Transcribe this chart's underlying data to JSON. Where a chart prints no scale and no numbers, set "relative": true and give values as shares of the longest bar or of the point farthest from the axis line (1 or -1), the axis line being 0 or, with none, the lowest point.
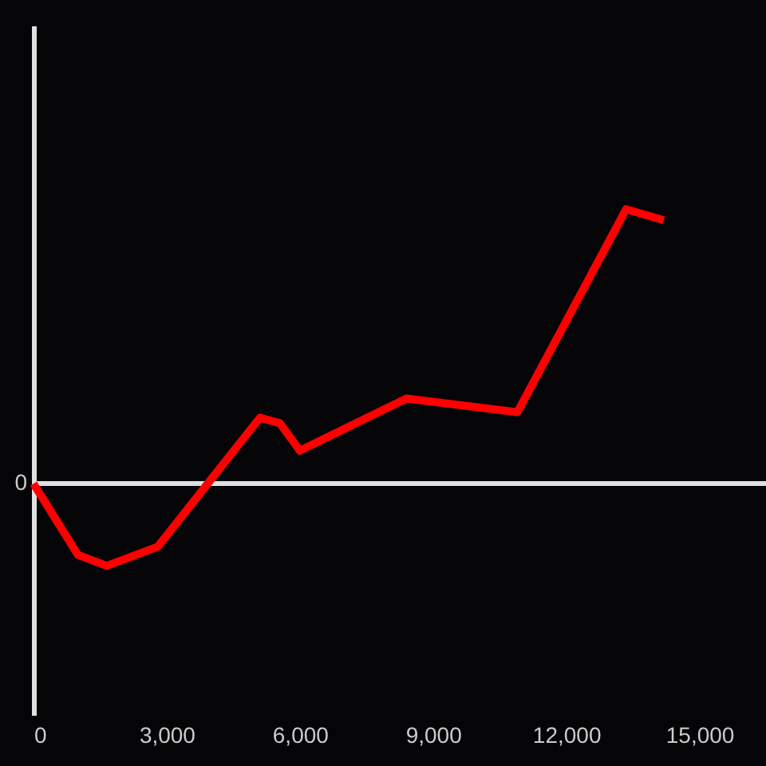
{
  "chart_data": {
    "type": "line",
    "relative": true,
    "x": [
      0,
      1000,
      1650,
      2800,
      5100,
      5550,
      6000,
      8400,
      10900,
      13350,
      14200
    ],
    "series": [
      {
        "color": "#ff0000",
        "values": [
          0,
          -0.26,
          -0.3,
          -0.23,
          0.24,
          0.22,
          0.12,
          0.31,
          0.26,
          1,
          0.96
        ]
      }
    ],
    "xlim": [
      0,
      16500
    ],
    "xticks": [
      0,
      {
        "value": 3000,
        "label": "3,000"
      },
      {
        "value": 6000,
        "label": "6,000"
      },
      {
        "value": 9000,
        "label": "9,000"
      },
      {
        "value": 12000,
        "label": "12,000"
      },
      {
        "value": 15000,
        "label": "15,000"
      }
    ],
    "ref_lines": [
      {
        "axis": "y",
        "value": 0,
        "label": "0"
      }
    ],
    "grid": false,
    "marker": "none",
    "line_style": "solid"
  }
}
